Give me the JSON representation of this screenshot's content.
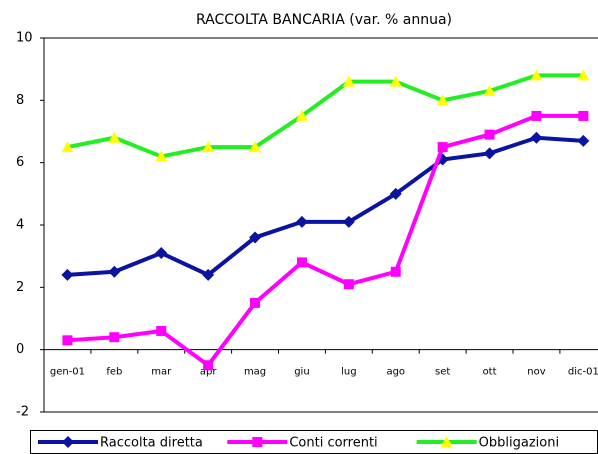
{
  "chart_data": {
    "type": "line",
    "title": "RACCOLTA BANCARIA (var. % annua)",
    "categories": [
      "gen-01",
      "feb",
      "mar",
      "apr",
      "mag",
      "giu",
      "lug",
      "ago",
      "set",
      "ott",
      "nov",
      "dic-01"
    ],
    "series": [
      {
        "name": "Raccolta diretta",
        "color": "#0a14a0",
        "marker": "diamond",
        "marker_color": "#0a14a0",
        "values": [
          2.4,
          2.5,
          3.1,
          2.4,
          3.6,
          4.1,
          4.1,
          5.0,
          6.1,
          6.3,
          6.8,
          6.7
        ]
      },
      {
        "name": "Conti correnti",
        "color": "#ff00ff",
        "marker": "square",
        "marker_color": "#ff00ff",
        "values": [
          0.3,
          0.4,
          0.6,
          -0.5,
          1.5,
          2.8,
          2.1,
          2.5,
          6.5,
          6.9,
          7.5,
          7.5
        ]
      },
      {
        "name": "Obbligazioni",
        "color": "#22ee22",
        "marker": "triangle",
        "marker_color": "#ffff00",
        "values": [
          6.5,
          6.8,
          6.2,
          6.5,
          6.5,
          7.5,
          8.6,
          8.6,
          8.0,
          8.3,
          8.8,
          8.8
        ]
      }
    ],
    "ylim": [
      -2,
      10
    ],
    "yticks": [
      -2,
      0,
      2,
      4,
      6,
      8,
      10
    ],
    "grid": false,
    "legend": "bottom"
  }
}
